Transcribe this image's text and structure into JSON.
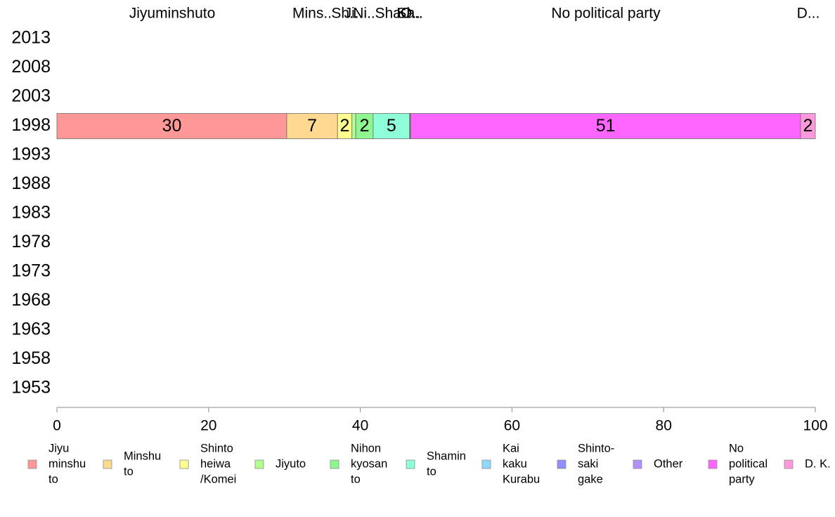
{
  "chart_data": {
    "type": "bar",
    "orientation": "horizontal",
    "stacked": true,
    "xlim": [
      0,
      100
    ],
    "x_ticks": [
      0,
      20,
      40,
      60,
      80,
      100
    ],
    "categories": [
      "2013",
      "2008",
      "2003",
      "1998",
      "1993",
      "1988",
      "1983",
      "1978",
      "1973",
      "1968",
      "1963",
      "1958",
      "1953"
    ],
    "top_labels": [
      "Jiyuminshuto",
      "Mins..",
      "Sh..",
      "Ji..",
      "Ni..",
      "Sha..",
      "Ka..",
      "Sh..",
      "O..",
      "No political party",
      "D..."
    ],
    "series": [
      {
        "name": "Jiyu minshu to",
        "legend_lines": [
          "Jiyu",
          "minshu",
          "to"
        ],
        "color": "#ff9896",
        "values": [
          null,
          null,
          null,
          30.3,
          null,
          null,
          null,
          null,
          null,
          null,
          null,
          null,
          null
        ],
        "data_labels": [
          "",
          "",
          "",
          "30",
          "",
          "",
          "",
          "",
          "",
          "",
          "",
          "",
          ""
        ]
      },
      {
        "name": "Minshu to",
        "legend_lines": [
          "Minshu",
          "to"
        ],
        "color": "#ffd991",
        "values": [
          null,
          null,
          null,
          6.7,
          null,
          null,
          null,
          null,
          null,
          null,
          null,
          null,
          null
        ],
        "data_labels": [
          "",
          "",
          "",
          "7",
          "",
          "",
          "",
          "",
          "",
          "",
          "",
          "",
          ""
        ]
      },
      {
        "name": "Shinto heiwa /Komei",
        "legend_lines": [
          "Shinto",
          "heiwa",
          "/Komei"
        ],
        "color": "#ffff8f",
        "values": [
          null,
          null,
          null,
          1.9,
          null,
          null,
          null,
          null,
          null,
          null,
          null,
          null,
          null
        ],
        "data_labels": [
          "",
          "",
          "",
          "2",
          "",
          "",
          "",
          "",
          "",
          "",
          "",
          "",
          ""
        ]
      },
      {
        "name": "Jiyuto",
        "legend_lines": [
          "Jiyuto"
        ],
        "color": "#b3ff8f",
        "values": [
          null,
          null,
          null,
          0.5,
          null,
          null,
          null,
          null,
          null,
          null,
          null,
          null,
          null
        ],
        "data_labels": [
          "",
          "",
          "",
          "",
          "",
          "",
          "",
          "",
          "",
          "",
          "",
          "",
          ""
        ]
      },
      {
        "name": "Nihon kyosan to",
        "legend_lines": [
          "Nihon",
          "kyosan",
          "to"
        ],
        "color": "#8ff58f",
        "values": [
          null,
          null,
          null,
          2.3,
          null,
          null,
          null,
          null,
          null,
          null,
          null,
          null,
          null
        ],
        "data_labels": [
          "",
          "",
          "",
          "2",
          "",
          "",
          "",
          "",
          "",
          "",
          "",
          "",
          ""
        ]
      },
      {
        "name": "Shamin to",
        "legend_lines": [
          "Shamin",
          "to"
        ],
        "color": "#8fffd9",
        "values": [
          null,
          null,
          null,
          4.8,
          null,
          null,
          null,
          null,
          null,
          null,
          null,
          null,
          null
        ],
        "data_labels": [
          "",
          "",
          "",
          "5",
          "",
          "",
          "",
          "",
          "",
          "",
          "",
          "",
          ""
        ]
      },
      {
        "name": "Kai kaku Kurabu",
        "legend_lines": [
          "Kai",
          "kaku",
          "Kurabu"
        ],
        "color": "#8fd9ff",
        "values": [
          null,
          null,
          null,
          0.05,
          null,
          null,
          null,
          null,
          null,
          null,
          null,
          null,
          null
        ],
        "data_labels": [
          "",
          "",
          "",
          "",
          "",
          "",
          "",
          "",
          "",
          "",
          "",
          "",
          ""
        ]
      },
      {
        "name": "Shinto-saki gake",
        "legend_lines": [
          "Shinto-",
          "saki",
          "gake"
        ],
        "color": "#8f8fff",
        "values": [
          null,
          null,
          null,
          0.05,
          null,
          null,
          null,
          null,
          null,
          null,
          null,
          null,
          null
        ],
        "data_labels": [
          "",
          "",
          "",
          "",
          "",
          "",
          "",
          "",
          "",
          "",
          "",
          "",
          ""
        ]
      },
      {
        "name": "Other",
        "legend_lines": [
          "Other"
        ],
        "color": "#b38fff",
        "values": [
          null,
          null,
          null,
          0.05,
          null,
          null,
          null,
          null,
          null,
          null,
          null,
          null,
          null
        ],
        "data_labels": [
          "",
          "",
          "",
          "",
          "",
          "",
          "",
          "",
          "",
          "",
          "",
          "",
          ""
        ]
      },
      {
        "name": "No political party",
        "legend_lines": [
          "No",
          "political",
          "party"
        ],
        "color": "#ff66ff",
        "values": [
          null,
          null,
          null,
          51.4,
          null,
          null,
          null,
          null,
          null,
          null,
          null,
          null,
          null
        ],
        "data_labels": [
          "",
          "",
          "",
          "51",
          "",
          "",
          "",
          "",
          "",
          "",
          "",
          "",
          ""
        ]
      },
      {
        "name": "D. K.",
        "legend_lines": [
          "D. K."
        ],
        "color": "#ff99dd",
        "values": [
          null,
          null,
          null,
          1.95,
          null,
          null,
          null,
          null,
          null,
          null,
          null,
          null,
          null
        ],
        "data_labels": [
          "",
          "",
          "",
          "2",
          "",
          "",
          "",
          "",
          "",
          "",
          "",
          "",
          ""
        ]
      }
    ],
    "legend_position": "bottom",
    "grid": false
  }
}
